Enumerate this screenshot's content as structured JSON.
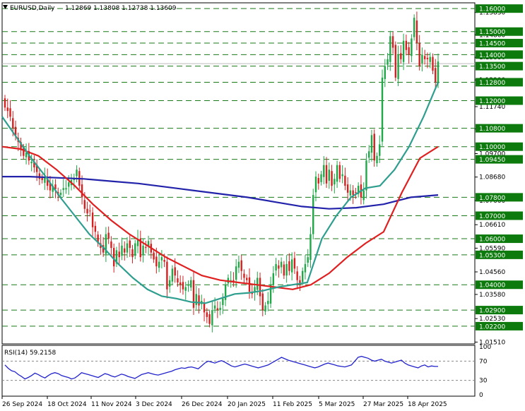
{
  "header": {
    "symbol": "EURUSD,Daily",
    "ohlc": "1.12869 1.13808 1.12738 1.13609"
  },
  "rsi_header": "RSI(14) 59.2158",
  "colors": {
    "bull": "#1fa847",
    "bear": "#d42020",
    "ma_fast": "#2e9e8f",
    "ma_mid": "#e02020",
    "ma_slow": "#2222aa",
    "level_line": "#1a7a1a",
    "level_box": "#0c7a0c",
    "rsi_line": "#2222cc"
  },
  "chart_data": {
    "type": "candlestick",
    "symbol": "EURUSD",
    "timeframe": "Daily",
    "y_range": [
      1.0143,
      1.1625
    ],
    "y_ticks": [
      "1.15830",
      "1.14860",
      "1.13880",
      "1.12900",
      "1.11740",
      "1.10770",
      "1.09700",
      "1.08680",
      "1.07660",
      "1.06610",
      "1.05590",
      "1.04560",
      "1.03580",
      "1.02530",
      "1.01510"
    ],
    "levels": [
      "1.16000",
      "1.15000",
      "1.14500",
      "1.14000",
      "1.13500",
      "1.12800",
      "1.12000",
      "1.10800",
      "1.10000",
      "1.09450",
      "1.07800",
      "1.07000",
      "1.06000",
      "1.05300",
      "1.04000",
      "1.02900",
      "1.02200"
    ],
    "x_labels": [
      "26 Sep 2024",
      "18 Oct 2024",
      "11 Nov 2024",
      "3 Dec 2024",
      "26 Dec 2024",
      "20 Jan 2025",
      "11 Feb 2025",
      "5 Mar 2025",
      "27 Mar 2025",
      "18 Apr 2025"
    ],
    "close_path": [
      1.117,
      1.1155,
      1.113,
      1.108,
      1.105,
      1.102,
      1.0985,
      1.096,
      1.0975,
      1.094,
      1.0935,
      1.091,
      1.089,
      1.086,
      1.0855,
      1.087,
      1.083,
      1.081,
      1.083,
      1.0815,
      1.079,
      1.08,
      1.082,
      1.082,
      1.0845,
      1.0855,
      1.086,
      1.09,
      1.083,
      1.078,
      1.073,
      1.071,
      1.072,
      1.065,
      1.063,
      1.058,
      1.056,
      1.054,
      1.062,
      1.06,
      1.056,
      1.048,
      1.055,
      1.052,
      1.057,
      1.054,
      1.058,
      1.056,
      1.052,
      1.058,
      1.06,
      1.052,
      1.057,
      1.056,
      1.059,
      1.054,
      1.051,
      1.048,
      1.05,
      1.052,
      1.05,
      1.038,
      1.042,
      1.047,
      1.044,
      1.041,
      1.04,
      1.038,
      1.039,
      1.04,
      1.042,
      1.03,
      1.036,
      1.031,
      1.033,
      1.028,
      1.026,
      1.023,
      1.029,
      1.031,
      1.029,
      1.03,
      1.034,
      1.04,
      1.043,
      1.042,
      1.041,
      1.048,
      1.05,
      1.046,
      1.043,
      1.042,
      1.037,
      1.036,
      1.039,
      1.043,
      1.035,
      1.029,
      1.031,
      1.033,
      1.04,
      1.045,
      1.049,
      1.047,
      1.05,
      1.044,
      1.049,
      1.046,
      1.051,
      1.047,
      1.042,
      1.04,
      1.046,
      1.049,
      1.052,
      1.062,
      1.079,
      1.087,
      1.084,
      1.088,
      1.092,
      1.084,
      1.09,
      1.083,
      1.086,
      1.092,
      1.086,
      1.088,
      1.083,
      1.08,
      1.081,
      1.079,
      1.08,
      1.083,
      1.078,
      1.081,
      1.094,
      1.098,
      1.105,
      1.094,
      1.096,
      1.101,
      1.13,
      1.135,
      1.138,
      1.148,
      1.143,
      1.13,
      1.14,
      1.138,
      1.146,
      1.142,
      1.14,
      1.147,
      1.156,
      1.145,
      1.135,
      1.14,
      1.138,
      1.138,
      1.139,
      1.133,
      1.128,
      1.137
    ],
    "ma_fast_path": [
      1.113,
      1.104,
      1.095,
      1.087,
      1.078,
      1.07,
      1.062,
      1.056,
      1.049,
      1.043,
      1.038,
      1.035,
      1.034,
      1.0325,
      1.032,
      1.034,
      1.036,
      1.0365,
      1.0375,
      1.039,
      1.04,
      1.041,
      1.06,
      1.07,
      1.078,
      1.082,
      1.083,
      1.09,
      1.1,
      1.113,
      1.128
    ],
    "ma_mid_path": [
      1.1,
      1.099,
      1.096,
      1.09,
      1.083,
      1.075,
      1.068,
      1.062,
      1.057,
      1.052,
      1.048,
      1.044,
      1.042,
      1.041,
      1.04,
      1.039,
      1.038,
      1.04,
      1.045,
      1.052,
      1.058,
      1.063,
      1.08,
      1.095,
      1.1
    ],
    "ma_slow_path": [
      1.087,
      1.087,
      1.0865,
      1.086,
      1.085,
      1.084,
      1.0825,
      1.081,
      1.0795,
      1.078,
      1.076,
      1.074,
      1.073,
      1.0735,
      1.075,
      1.078,
      1.079
    ],
    "rsi": {
      "period": 14,
      "value": 59.2158,
      "y_range": [
        0,
        100
      ],
      "y_ticks": [
        "100",
        "70",
        "30",
        "0"
      ],
      "levels": [
        70,
        30
      ],
      "values": [
        62,
        55,
        50,
        48,
        42,
        38,
        33,
        36,
        40,
        45,
        42,
        38,
        35,
        40,
        44,
        46,
        44,
        40,
        38,
        36,
        33,
        35,
        40,
        46,
        44,
        42,
        40,
        38,
        36,
        40,
        44,
        42,
        39,
        37,
        40,
        43,
        41,
        38,
        36,
        34,
        38,
        42,
        44,
        46,
        44,
        42,
        41,
        43,
        45,
        47,
        49,
        52,
        54,
        56,
        55,
        57,
        58,
        56,
        54,
        60,
        66,
        70,
        68,
        66,
        69,
        71,
        68,
        64,
        60,
        58,
        60,
        62,
        64,
        62,
        60,
        58,
        56,
        58,
        60,
        62,
        66,
        70,
        74,
        78,
        75,
        72,
        70,
        68,
        66,
        64,
        62,
        60,
        58,
        56,
        58,
        61,
        64,
        66,
        64,
        62,
        60,
        59,
        58,
        60,
        62,
        70,
        78,
        80,
        78,
        76,
        72,
        70,
        72,
        74,
        70,
        68,
        66,
        68,
        70,
        72,
        66,
        62,
        60,
        58,
        56,
        60,
        62,
        58,
        60,
        59,
        59
      ]
    }
  }
}
